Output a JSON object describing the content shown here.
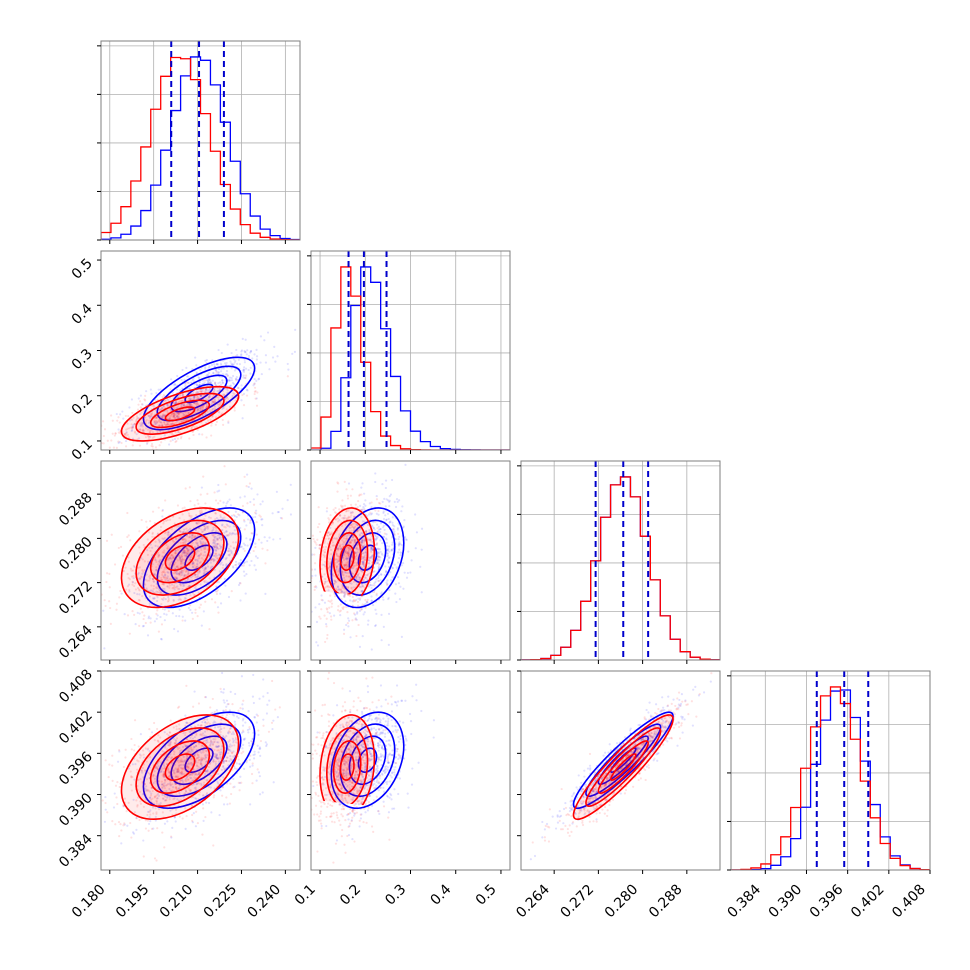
{
  "chart_data": {
    "type": "corner",
    "grid": true,
    "series": [
      {
        "name": "",
        "color": "#0000ff",
        "means": [
          0.2105,
          0.205,
          0.2765,
          0.395
        ],
        "sds": [
          0.0095,
          0.04,
          0.0045,
          0.0035
        ],
        "quantiles": [
          [
            0.201,
            0.2105,
            0.219
          ],
          [
            0.163,
            0.197,
            0.247
          ],
          [
            0.2715,
            0.2765,
            0.281
          ],
          [
            0.3915,
            0.3955,
            0.399
          ]
        ]
      },
      {
        "name": "",
        "color": "#ff0000",
        "means": [
          0.204,
          0.16,
          0.2765,
          0.394
        ],
        "sds": [
          0.01,
          0.03,
          0.0045,
          0.0038
        ]
      }
    ],
    "correlations": {
      "1-0": [
        0.7,
        0.65
      ],
      "2-0": [
        0.55,
        0.4
      ],
      "2-1": [
        0.3,
        0.15
      ],
      "3-0": [
        0.55,
        0.45
      ],
      "3-1": [
        0.3,
        0.15
      ],
      "3-2": [
        0.92,
        0.92
      ]
    },
    "quantile_lines_color": "#0000cc",
    "axes": [
      {
        "range": [
          0.177,
          0.245
        ],
        "ticks": [
          0.18,
          0.195,
          0.21,
          0.225,
          0.24
        ],
        "tick_labels": [
          "0.180",
          "0.195",
          "0.210",
          "0.225",
          "0.240"
        ]
      },
      {
        "range": [
          0.08,
          0.52
        ],
        "ticks": [
          0.1,
          0.2,
          0.3,
          0.4,
          0.5
        ],
        "tick_labels": [
          "0.1",
          "0.2",
          "0.3",
          "0.4",
          "0.5"
        ]
      },
      {
        "range": [
          0.258,
          0.294
        ],
        "ticks": [
          0.264,
          0.272,
          0.28,
          0.288
        ],
        "tick_labels": [
          "0.264",
          "0.272",
          "0.280",
          "0.288"
        ]
      },
      {
        "range": [
          0.379,
          0.408
        ],
        "ticks": [
          0.384,
          0.39,
          0.396,
          0.402,
          0.408
        ],
        "tick_labels": [
          "0.384",
          "0.390",
          "0.396",
          "0.402",
          "0.408"
        ]
      }
    ]
  }
}
